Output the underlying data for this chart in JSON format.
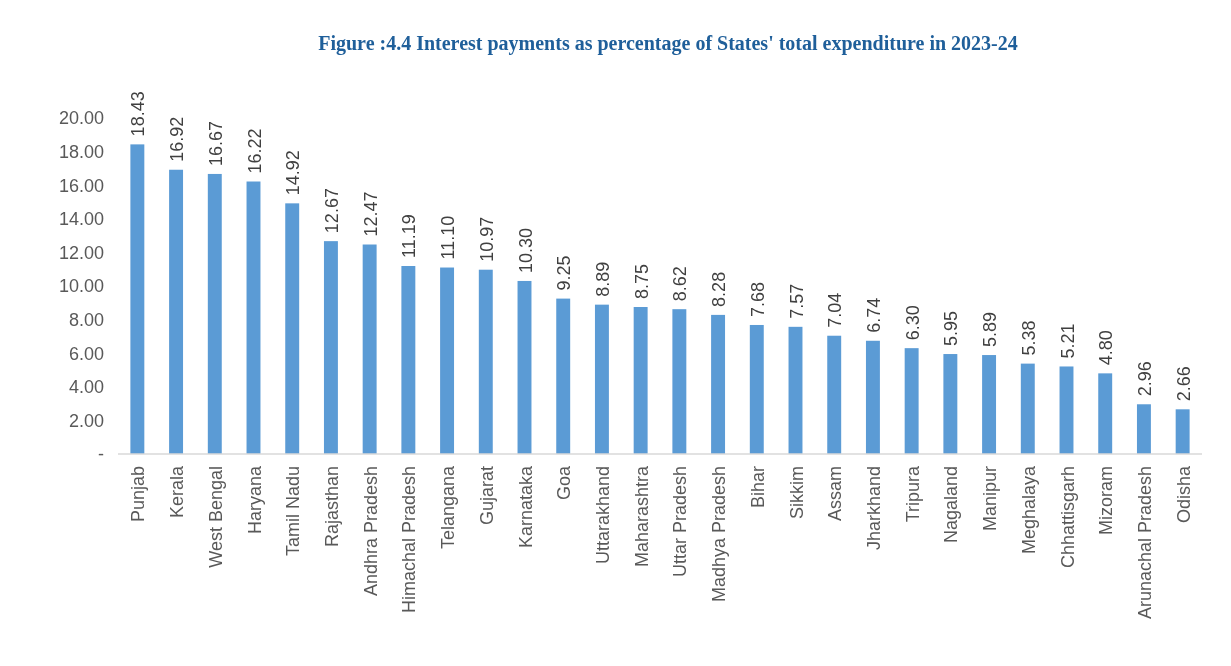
{
  "chart_data": {
    "type": "bar",
    "title": "Figure :4.4 Interest payments as percentage of States' total expenditure in 2023-24",
    "categories": [
      "Punjab",
      "Kerala",
      "West Bengal",
      "Haryana",
      "Tamil Nadu",
      "Rajasthan",
      "Andhra Pradesh",
      "Himachal Pradesh",
      "Telangana",
      "Gujarat",
      "Karnataka",
      "Goa",
      "Uttarakhand",
      "Maharashtra",
      "Uttar Pradesh",
      "Madhya Pradesh",
      "Bihar",
      "Sikkim",
      "Assam",
      "Jharkhand",
      "Tripura",
      "Nagaland",
      "Manipur",
      "Meghalaya",
      "Chhattisgarh",
      "Mizoram",
      "Arunachal Pradesh",
      "Odisha"
    ],
    "values": [
      18.43,
      16.92,
      16.67,
      16.22,
      14.92,
      12.67,
      12.47,
      11.19,
      11.1,
      10.97,
      10.3,
      9.25,
      8.89,
      8.75,
      8.62,
      8.28,
      7.68,
      7.57,
      7.04,
      6.74,
      6.3,
      5.95,
      5.89,
      5.38,
      5.21,
      4.8,
      2.96,
      2.66
    ],
    "value_labels": [
      "18.43",
      "16.92",
      "16.67",
      "16.22",
      "14.92",
      "12.67",
      "12.47",
      "11.19",
      "11.10",
      "10.97",
      "10.30",
      "9.25",
      "8.89",
      "8.75",
      "8.62",
      "8.28",
      "7.68",
      "7.57",
      "7.04",
      "6.74",
      "6.30",
      "5.95",
      "5.89",
      "5.38",
      "5.21",
      "4.80",
      "2.96",
      "2.66"
    ],
    "color": "#5b9bd5",
    "ylim": [
      0,
      20
    ],
    "yticks": [
      {
        "value": 0,
        "label": "-"
      },
      {
        "value": 2,
        "label": "2.00"
      },
      {
        "value": 4,
        "label": "4.00"
      },
      {
        "value": 6,
        "label": "6.00"
      },
      {
        "value": 8,
        "label": "8.00"
      },
      {
        "value": 10,
        "label": "10.00"
      },
      {
        "value": 12,
        "label": "12.00"
      },
      {
        "value": 14,
        "label": "14.00"
      },
      {
        "value": 16,
        "label": "16.00"
      },
      {
        "value": 18,
        "label": "18.00"
      },
      {
        "value": 20,
        "label": "20.00"
      }
    ],
    "grid": false
  }
}
